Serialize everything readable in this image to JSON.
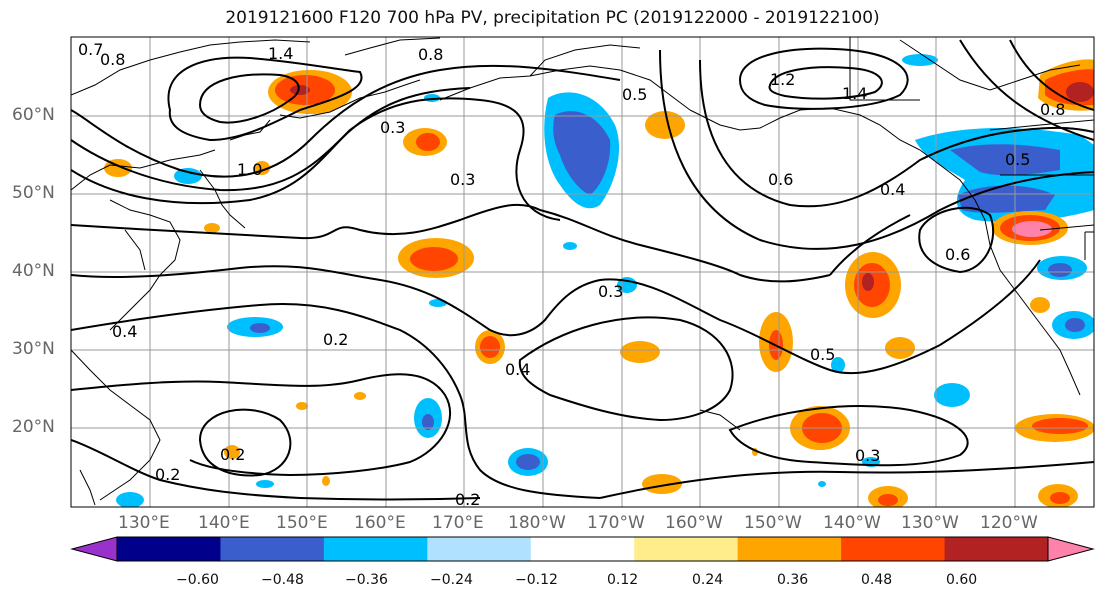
{
  "title": "2019121600 F120 700 hPa PV, precipitation PC (2019122000 - 2019122100)",
  "lat_labels": [
    "60°N",
    "50°N",
    "40°N",
    "30°N",
    "20°N"
  ],
  "lon_labels": [
    "130°E",
    "140°E",
    "150°E",
    "160°E",
    "170°E",
    "180°W",
    "170°W",
    "160°W",
    "150°W",
    "140°W",
    "130°W",
    "120°W"
  ],
  "contour_labels": [
    "0.7",
    "0.8",
    "1.4",
    "0.8",
    "0.5",
    "1.2",
    "1.4",
    "0.3",
    "0.3",
    "1.0",
    "0.8",
    "0.5",
    "0.6",
    "0.4",
    "0.6",
    "0.5",
    "0.4",
    "0.2",
    "0.2",
    "0.2",
    "0.3",
    "0.2",
    "0.4",
    "0.3"
  ],
  "colorbar": {
    "ticks": [
      "−0.60",
      "−0.48",
      "−0.36",
      "−0.24",
      "−0.12",
      "0.12",
      "0.24",
      "0.36",
      "0.48",
      "0.60"
    ],
    "colors": [
      "#9932cc",
      "#00008b",
      "#3a5fcd",
      "#00bfff",
      "#b0e2ff",
      "#ffffff",
      "#ffec8b",
      "#ffa500",
      "#ff4500",
      "#b22222",
      "#ff82ab"
    ]
  },
  "colors": {
    "land_line": "#000000",
    "grid": "#999999"
  }
}
